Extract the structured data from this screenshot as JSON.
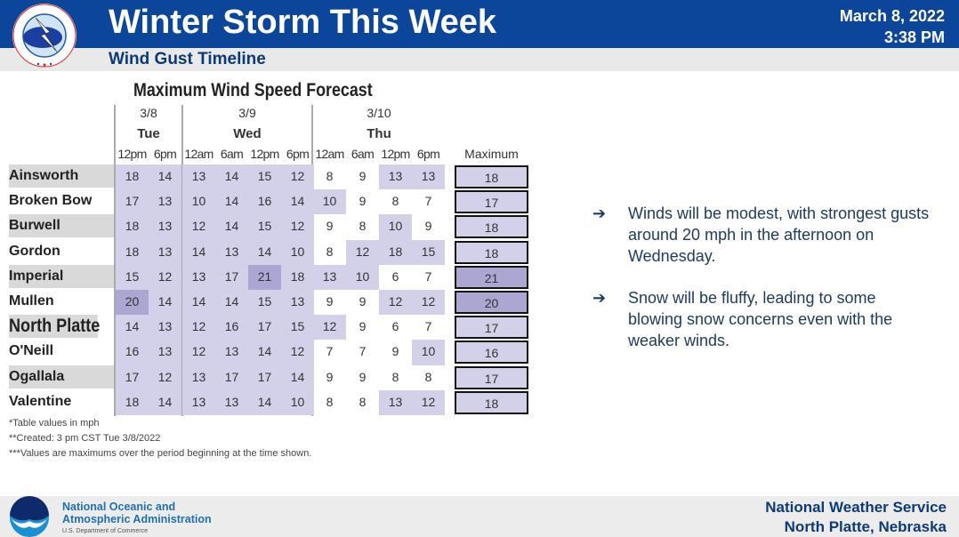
{
  "header": {
    "title": "Winter Storm This Week",
    "subtitle": "Wind Gust Timeline",
    "date": "March 8, 2022",
    "time": "3:38 PM",
    "logo": "National Weather Service"
  },
  "table": {
    "title": "Maximum Wind Speed Forecast",
    "days": [
      {
        "date": "3/8",
        "day": "Tue"
      },
      {
        "date": "3/9",
        "day": "Wed"
      },
      {
        "date": "3/10",
        "day": "Thu"
      }
    ],
    "times": [
      "12pm",
      "6pm",
      "12am",
      "6am",
      "12pm",
      "6pm",
      "12am",
      "6am",
      "12pm",
      "6pm"
    ],
    "max_label": "Maximum",
    "rows": [
      {
        "name": "Ainsworth",
        "values": [
          18,
          14,
          13,
          14,
          15,
          12,
          8,
          9,
          13,
          13
        ],
        "max": 18
      },
      {
        "name": "Broken Bow",
        "values": [
          17,
          13,
          10,
          14,
          16,
          14,
          10,
          9,
          8,
          7
        ],
        "max": 17
      },
      {
        "name": "Burwell",
        "values": [
          18,
          13,
          12,
          14,
          15,
          12,
          9,
          8,
          10,
          9
        ],
        "max": 18
      },
      {
        "name": "Gordon",
        "values": [
          18,
          13,
          14,
          13,
          14,
          10,
          8,
          12,
          18,
          15
        ],
        "max": 18
      },
      {
        "name": "Imperial",
        "values": [
          15,
          12,
          13,
          17,
          21,
          18,
          13,
          10,
          6,
          7
        ],
        "max": 21
      },
      {
        "name": "Mullen",
        "values": [
          20,
          14,
          14,
          14,
          15,
          13,
          9,
          9,
          12,
          12
        ],
        "max": 20
      },
      {
        "name": "North Platte",
        "values": [
          14,
          13,
          12,
          16,
          17,
          15,
          12,
          9,
          6,
          7
        ],
        "max": 17
      },
      {
        "name": "O'Neill",
        "values": [
          16,
          13,
          12,
          13,
          14,
          12,
          7,
          7,
          9,
          10
        ],
        "max": 16
      },
      {
        "name": "Ogallala",
        "values": [
          17,
          12,
          13,
          17,
          17,
          14,
          9,
          9,
          8,
          8
        ],
        "max": 17
      },
      {
        "name": "Valentine",
        "values": [
          18,
          14,
          13,
          13,
          14,
          10,
          8,
          8,
          13,
          12
        ],
        "max": 18
      }
    ],
    "notes": [
      "*Table values in mph",
      "**Created: 3 pm CST Tue 3/8/2022",
      "***Values are maximums over the period beginning at the time shown."
    ],
    "colors": {
      "light": "#d3d1e9",
      "dark": "#aba7d2",
      "name_shade": "#d9d9d9"
    }
  },
  "bullets": [
    {
      "icon": "arrow-right-icon",
      "text": "Winds will be modest, with strongest gusts around 20 mph in the afternoon on Wednesday."
    },
    {
      "icon": "arrow-right-icon",
      "text": "Snow will be fluffy, leading to some blowing snow concerns even with the weaker winds."
    }
  ],
  "footer": {
    "noaa_line1": "National Oceanic and",
    "noaa_line2": "Atmospheric Administration",
    "noaa_dept": "U.S. Department of Commerce",
    "noaa_logo": "NOAA",
    "nws_line1": "National Weather Service",
    "nws_line2": "North Platte, Nebraska"
  }
}
